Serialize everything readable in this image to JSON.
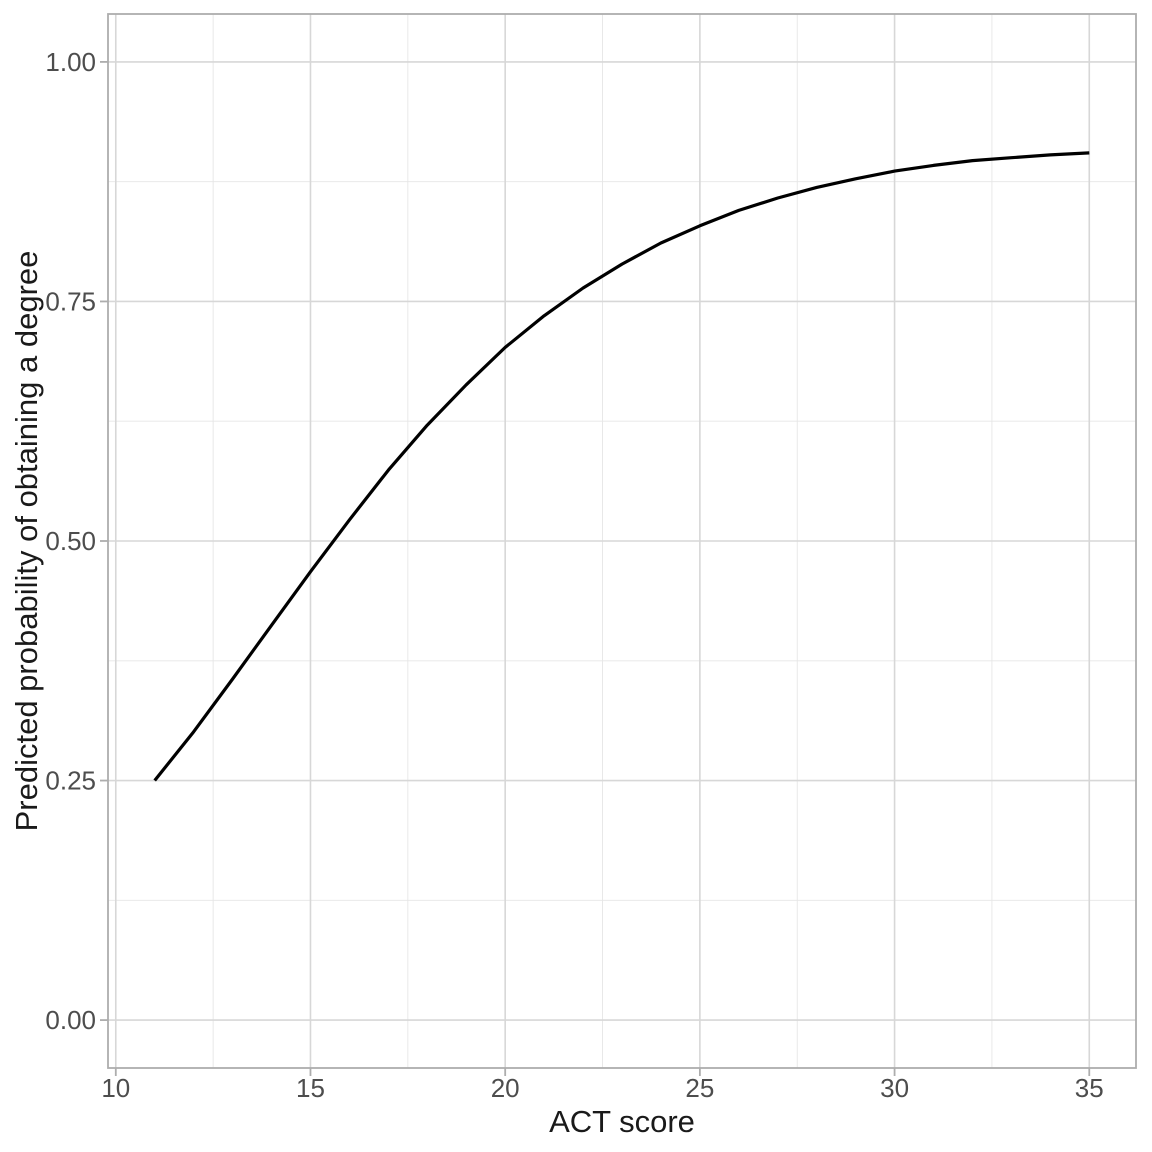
{
  "chart_data": {
    "type": "line",
    "title": "",
    "xlabel": "ACT score",
    "ylabel": "Predicted probability of obtaining a degree",
    "xlim": [
      9.8,
      36.2
    ],
    "ylim": [
      -0.05,
      1.05
    ],
    "x_major_ticks": [
      10,
      15,
      20,
      25,
      30,
      35
    ],
    "x_tick_labels": [
      "10",
      "15",
      "20",
      "25",
      "30",
      "35"
    ],
    "x_minor_ticks": [
      12.5,
      17.5,
      22.5,
      27.5,
      32.5
    ],
    "y_major_ticks": [
      0,
      0.25,
      0.5,
      0.75,
      1
    ],
    "y_tick_labels": [
      "0.00",
      "0.25",
      "0.50",
      "0.75",
      "1.00"
    ],
    "y_minor_ticks": [
      0.125,
      0.375,
      0.625,
      0.875
    ],
    "grid": "major+minor",
    "legend": "none",
    "series": [
      {
        "name": "predicted-probability-curve",
        "x": [
          11,
          12,
          13,
          14,
          15,
          16,
          17,
          18,
          19,
          20,
          21,
          22,
          23,
          24,
          25,
          26,
          27,
          28,
          29,
          30,
          31,
          32,
          33,
          34,
          35
        ],
        "y": [
          0.25,
          0.301,
          0.356,
          0.412,
          0.468,
          0.522,
          0.574,
          0.621,
          0.663,
          0.702,
          0.735,
          0.764,
          0.789,
          0.811,
          0.829,
          0.845,
          0.858,
          0.869,
          0.878,
          0.886,
          0.892,
          0.897,
          0.9,
          0.903,
          0.905
        ]
      }
    ],
    "style": {
      "curve_color": "#000000",
      "grid_major_color": "#d7d7d7",
      "grid_minor_color": "#e6e6e6",
      "panel_border_color": "#adadad",
      "tick_mark_color": "#adadad",
      "tick_label_color": "#4d4d4d",
      "axis_title_color": "#1a1a1a",
      "background_color": "#ffffff",
      "panel_background_color": "#ffffff"
    }
  }
}
